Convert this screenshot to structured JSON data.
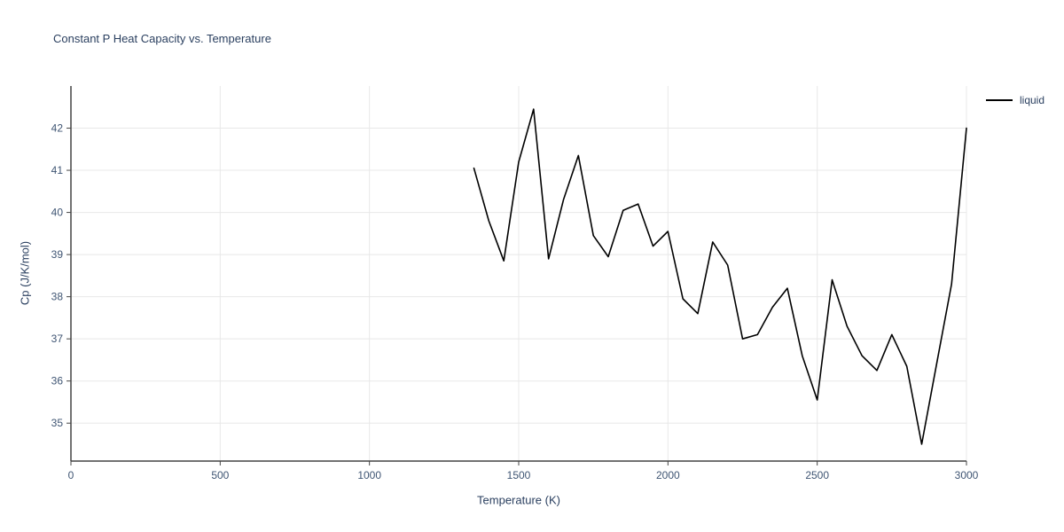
{
  "chart": {
    "title": "Constant P Heat Capacity vs. Temperature"
  },
  "chart_data": {
    "type": "line",
    "title": "Constant P Heat Capacity vs. Temperature",
    "xlabel": "Temperature (K)",
    "ylabel": "Cp (J/K/mol)",
    "xlim": [
      0,
      3000
    ],
    "ylim": [
      34.1,
      43.0
    ],
    "xticks": [
      0,
      500,
      1000,
      1500,
      2000,
      2500,
      3000
    ],
    "yticks": [
      35,
      36,
      37,
      38,
      39,
      40,
      41,
      42
    ],
    "grid": true,
    "legend_position": "top-right-outside",
    "colors": {
      "line": "#000000",
      "grid": "#e8e8e8",
      "axis": "#444444",
      "text": "#2a3f5f",
      "tick_text": "#3f5573"
    },
    "series": [
      {
        "name": "liquid",
        "color": "#000000",
        "x": [
          1350,
          1400,
          1450,
          1500,
          1550,
          1600,
          1650,
          1700,
          1750,
          1800,
          1850,
          1900,
          1950,
          2000,
          2050,
          2100,
          2150,
          2200,
          2250,
          2300,
          2350,
          2400,
          2450,
          2500,
          2550,
          2600,
          2650,
          2700,
          2750,
          2800,
          2850,
          2900,
          2950,
          3000
        ],
        "y": [
          41.05,
          39.8,
          38.85,
          41.2,
          42.45,
          38.9,
          40.3,
          41.35,
          39.45,
          38.95,
          40.05,
          40.2,
          39.2,
          39.55,
          37.95,
          37.6,
          39.3,
          38.75,
          37.0,
          37.1,
          37.75,
          38.2,
          36.6,
          35.55,
          38.4,
          37.3,
          36.6,
          36.25,
          37.1,
          36.35,
          34.5,
          36.4,
          38.3,
          42.0
        ]
      }
    ]
  }
}
